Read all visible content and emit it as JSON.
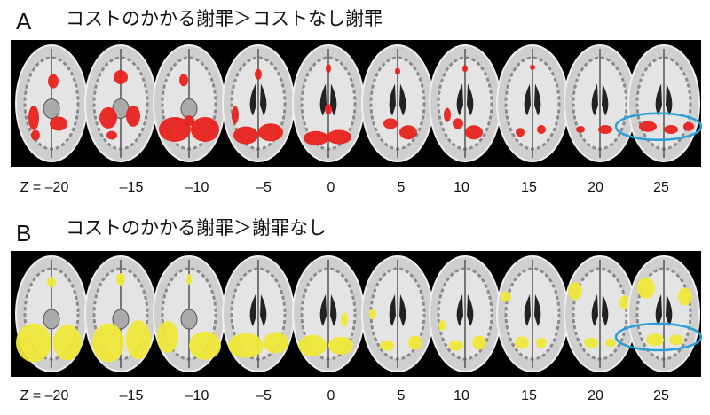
{
  "panels": [
    {
      "label": "A",
      "title": "コストのかかる謝罪＞コストなし謝罪",
      "z_labels": [
        "Z = –20",
        "–15",
        "–10",
        "–5",
        "0",
        "5",
        "10",
        "15",
        "20",
        "25"
      ]
    },
    {
      "label": "B",
      "title": "コストのかかる謝罪＞謝罪なし",
      "z_labels": [
        "Z = –20",
        "–15",
        "–10",
        "–5",
        "0",
        "5",
        "10",
        "15",
        "20",
        "25"
      ]
    }
  ]
}
